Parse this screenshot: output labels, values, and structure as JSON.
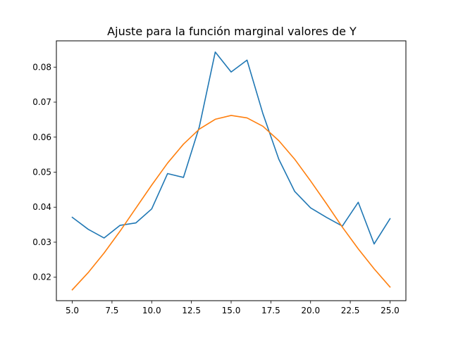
{
  "chart_data": {
    "type": "line",
    "title": "Ajuste para la función marginal valores de Y",
    "xlabel": "",
    "ylabel": "",
    "xlim": [
      4.0,
      26.0
    ],
    "ylim": [
      0.0133,
      0.0875
    ],
    "grid": false,
    "x": [
      5,
      6,
      7,
      8,
      9,
      10,
      11,
      12,
      13,
      14,
      15,
      16,
      17,
      18,
      19,
      20,
      21,
      22,
      23,
      24,
      25
    ],
    "x_ticks": [
      5.0,
      7.5,
      10.0,
      12.5,
      15.0,
      17.5,
      20.0,
      22.5,
      25.0
    ],
    "x_tick_labels": [
      "5.0",
      "7.5",
      "10.0",
      "12.5",
      "15.0",
      "17.5",
      "20.0",
      "22.5",
      "25.0"
    ],
    "y_ticks": [
      0.02,
      0.03,
      0.04,
      0.05,
      0.06,
      0.07,
      0.08
    ],
    "y_tick_labels": [
      "0.02",
      "0.03",
      "0.04",
      "0.05",
      "0.06",
      "0.07",
      "0.08"
    ],
    "series": [
      {
        "color": "#1f77b4",
        "values": [
          0.0371,
          0.0337,
          0.0312,
          0.0348,
          0.0355,
          0.0395,
          0.0496,
          0.0485,
          0.063,
          0.0843,
          0.0786,
          0.082,
          0.0667,
          0.0537,
          0.0445,
          0.0398,
          0.0371,
          0.0346,
          0.0414,
          0.0295,
          0.0367
        ]
      },
      {
        "color": "#ff7f0e",
        "values": [
          0.0164,
          0.0213,
          0.0269,
          0.0331,
          0.0397,
          0.0463,
          0.0526,
          0.058,
          0.0623,
          0.0651,
          0.0662,
          0.0655,
          0.0631,
          0.059,
          0.0537,
          0.0475,
          0.041,
          0.0343,
          0.0281,
          0.0224,
          0.0172
        ]
      }
    ]
  }
}
